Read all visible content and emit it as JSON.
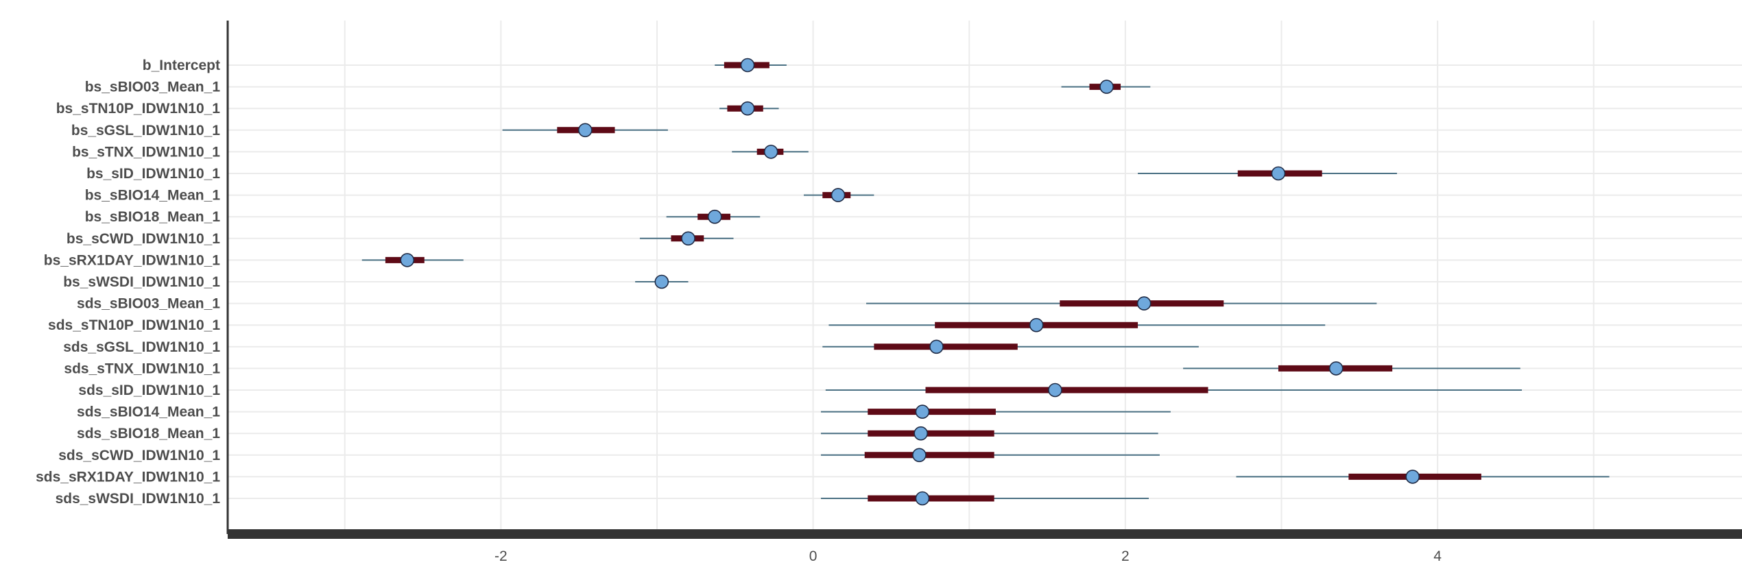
{
  "colors": {
    "outer_interval": "#4a7083",
    "inner_interval": "#5e0a16",
    "point_fill": "#6fa8dc",
    "point_stroke": "#1f2a44",
    "grid": "#ebebeb",
    "axis": "#333333",
    "label": "#4d4d4d"
  },
  "chart_data": {
    "type": "interval",
    "title": "",
    "xlabel": "",
    "ylabel": "",
    "xlim": [
      -3.75,
      5.95
    ],
    "x_ticks": [
      -2,
      0,
      2,
      4
    ],
    "x_tick_labels": [
      "-2",
      "0",
      "2",
      "4"
    ],
    "grid": true,
    "parameters": [
      {
        "label": "b_Intercept",
        "median": -0.42,
        "inner": [
          -0.57,
          -0.28
        ],
        "outer": [
          -0.63,
          -0.17
        ]
      },
      {
        "label": "bs_sBIO03_Mean_1",
        "median": 1.88,
        "inner": [
          1.77,
          1.97
        ],
        "outer": [
          1.59,
          2.16
        ]
      },
      {
        "label": "bs_sTN10P_IDW1N10_1",
        "median": -0.42,
        "inner": [
          -0.55,
          -0.32
        ],
        "outer": [
          -0.6,
          -0.22
        ]
      },
      {
        "label": "bs_sGSL_IDW1N10_1",
        "median": -1.46,
        "inner": [
          -1.64,
          -1.27
        ],
        "outer": [
          -1.99,
          -0.93
        ]
      },
      {
        "label": "bs_sTNX_IDW1N10_1",
        "median": -0.27,
        "inner": [
          -0.36,
          -0.19
        ],
        "outer": [
          -0.52,
          -0.03
        ]
      },
      {
        "label": "bs_sID_IDW1N10_1",
        "median": 2.98,
        "inner": [
          2.72,
          3.26
        ],
        "outer": [
          2.08,
          3.74
        ]
      },
      {
        "label": "bs_sBIO14_Mean_1",
        "median": 0.16,
        "inner": [
          0.06,
          0.24
        ],
        "outer": [
          -0.06,
          0.39
        ]
      },
      {
        "label": "bs_sBIO18_Mean_1",
        "median": -0.63,
        "inner": [
          -0.74,
          -0.53
        ],
        "outer": [
          -0.94,
          -0.34
        ]
      },
      {
        "label": "bs_sCWD_IDW1N10_1",
        "median": -0.8,
        "inner": [
          -0.91,
          -0.7
        ],
        "outer": [
          -1.11,
          -0.51
        ]
      },
      {
        "label": "bs_sRX1DAY_IDW1N10_1",
        "median": -2.6,
        "inner": [
          -2.74,
          -2.49
        ],
        "outer": [
          -2.89,
          -2.24
        ]
      },
      {
        "label": "bs_sWSDI_IDW1N10_1",
        "median": -0.97,
        "inner": [
          -1.01,
          -0.93
        ],
        "outer": [
          -1.14,
          -0.8
        ]
      },
      {
        "label": "sds_sBIO03_Mean_1",
        "median": 2.12,
        "inner": [
          1.58,
          2.63
        ],
        "outer": [
          0.34,
          3.61
        ]
      },
      {
        "label": "sds_sTN10P_IDW1N10_1",
        "median": 1.43,
        "inner": [
          0.78,
          2.08
        ],
        "outer": [
          0.1,
          3.28
        ]
      },
      {
        "label": "sds_sGSL_IDW1N10_1",
        "median": 0.79,
        "inner": [
          0.39,
          1.31
        ],
        "outer": [
          0.06,
          2.47
        ]
      },
      {
        "label": "sds_sTNX_IDW1N10_1",
        "median": 3.35,
        "inner": [
          2.98,
          3.71
        ],
        "outer": [
          2.37,
          4.53
        ]
      },
      {
        "label": "sds_sID_IDW1N10_1",
        "median": 1.55,
        "inner": [
          0.72,
          2.53
        ],
        "outer": [
          0.08,
          4.54
        ]
      },
      {
        "label": "sds_sBIO14_Mean_1",
        "median": 0.7,
        "inner": [
          0.35,
          1.17
        ],
        "outer": [
          0.05,
          2.29
        ]
      },
      {
        "label": "sds_sBIO18_Mean_1",
        "median": 0.69,
        "inner": [
          0.35,
          1.16
        ],
        "outer": [
          0.05,
          2.21
        ]
      },
      {
        "label": "sds_sCWD_IDW1N10_1",
        "median": 0.68,
        "inner": [
          0.33,
          1.16
        ],
        "outer": [
          0.05,
          2.22
        ]
      },
      {
        "label": "sds_sRX1DAY_IDW1N10_1",
        "median": 3.84,
        "inner": [
          3.43,
          4.28
        ],
        "outer": [
          2.71,
          5.1
        ]
      },
      {
        "label": "sds_sWSDI_IDW1N10_1",
        "median": 0.7,
        "inner": [
          0.35,
          1.16
        ],
        "outer": [
          0.05,
          2.15
        ]
      }
    ]
  }
}
